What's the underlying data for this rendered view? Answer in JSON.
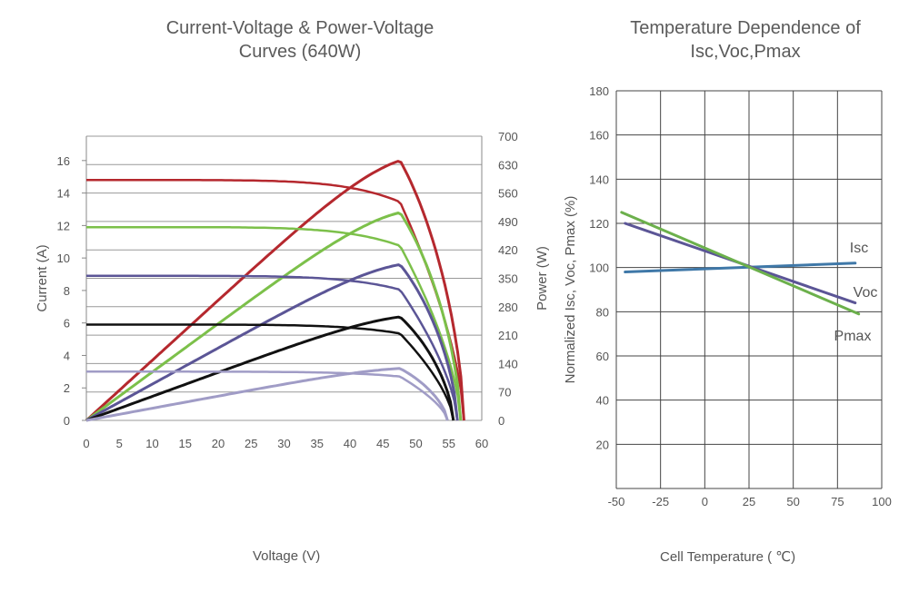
{
  "chart_data": [
    {
      "type": "line",
      "title": "Current-Voltage & Power-Voltage Curves (640W)",
      "title_lines": [
        "Current-Voltage & Power-Voltage",
        "Curves (640W)"
      ],
      "xlabel": "Voltage (V)",
      "ylabel": "Current (A)",
      "y2label": "Power (W)",
      "xlim": [
        0,
        60
      ],
      "ylim": [
        0,
        17.5
      ],
      "y2lim": [
        0,
        700
      ],
      "xticks": [
        "0",
        "5",
        "10",
        "15",
        "20",
        "25",
        "30",
        "35",
        "40",
        "45",
        "50",
        "55",
        "60"
      ],
      "yticks": [
        "0",
        "2",
        "4",
        "6",
        "8",
        "10",
        "12",
        "14",
        "16"
      ],
      "y2ticks": [
        "0",
        "70",
        "140",
        "210",
        "280",
        "350",
        "420",
        "490",
        "560",
        "630",
        "700"
      ],
      "series": [
        {
          "color": "#b5282e",
          "isc": 14.8,
          "voc": 57.3,
          "vmp": 47.6,
          "imp": 13.45,
          "pmax": 640
        },
        {
          "color": "#7cc04a",
          "isc": 11.9,
          "voc": 56.8,
          "vmp": 47.6,
          "imp": 10.75,
          "pmax": 512
        },
        {
          "color": "#5b5596",
          "isc": 8.9,
          "voc": 56.3,
          "vmp": 47.6,
          "imp": 8.05,
          "pmax": 384
        },
        {
          "color": "#111111",
          "isc": 5.9,
          "voc": 55.7,
          "vmp": 47.6,
          "imp": 5.35,
          "pmax": 255
        },
        {
          "color": "#a09cc6",
          "isc": 3.0,
          "voc": 54.8,
          "vmp": 47.6,
          "imp": 2.7,
          "pmax": 128
        }
      ]
    },
    {
      "type": "line",
      "title": "Temperature Dependence of Isc,Voc,Pmax",
      "title_lines": [
        "Temperature Dependence of",
        "Isc,Voc,Pmax"
      ],
      "xlabel": "Cell Temperature ( ℃)",
      "ylabel": "Normalized Isc, Voc, Pmax (%)",
      "xlim": [
        -50,
        100
      ],
      "ylim": [
        0,
        180
      ],
      "xticks": [
        "-50",
        "-25",
        "0",
        "25",
        "50",
        "75",
        "100"
      ],
      "yticks": [
        "20",
        "40",
        "60",
        "80",
        "100",
        "120",
        "140",
        "160",
        "180"
      ],
      "series": [
        {
          "name": "Isc",
          "color": "#3f78a8",
          "x": [
            -45,
            85
          ],
          "y": [
            98,
            102
          ]
        },
        {
          "name": "Voc",
          "color": "#5b5596",
          "x": [
            -45,
            85
          ],
          "y": [
            120,
            84
          ]
        },
        {
          "name": "Pmax",
          "color": "#6cb04c",
          "x": [
            -47,
            87
          ],
          "y": [
            125,
            79
          ]
        }
      ]
    }
  ]
}
